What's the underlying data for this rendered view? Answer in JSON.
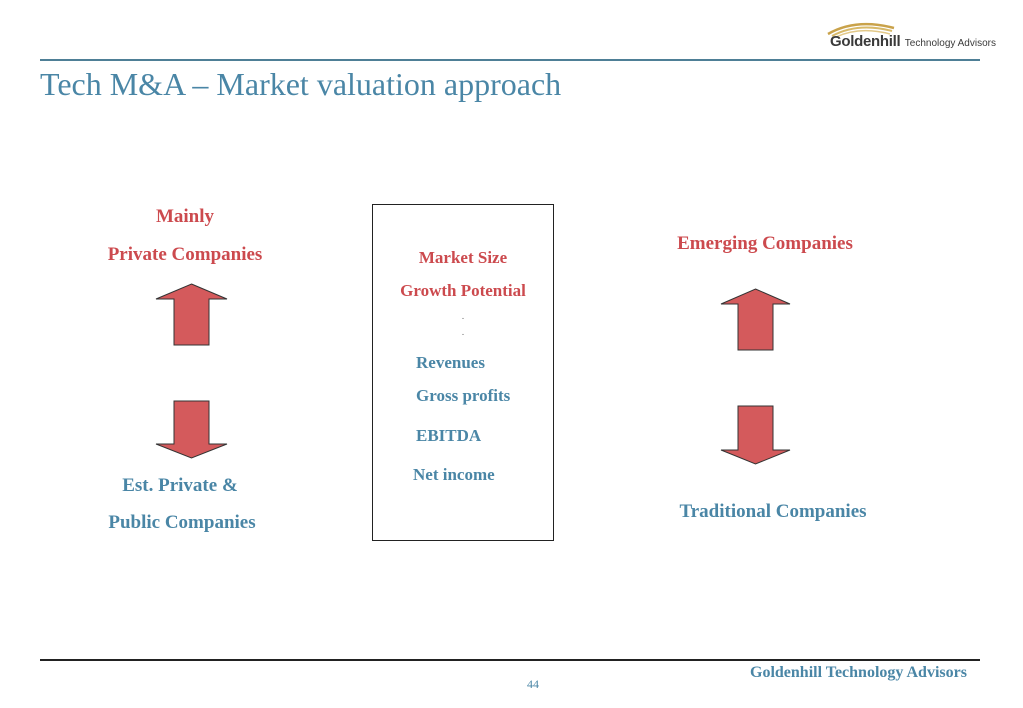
{
  "header": {
    "logo_main": "Goldenhill",
    "logo_sub": "Technology Advisors",
    "title": "Tech M&A – Market valuation approach"
  },
  "left": {
    "top_line1": "Mainly",
    "top_line2": "Private Companies",
    "bottom_line1": "Est. Private &",
    "bottom_line2": "Public Companies"
  },
  "center_box": {
    "items_red": [
      "Market Size",
      "Growth Potential"
    ],
    "dots": [
      ".",
      "."
    ],
    "items_blue": [
      "Revenues",
      "Gross profits",
      "EBITDA",
      "Net income"
    ]
  },
  "right": {
    "top_label": "Emerging Companies",
    "bottom_label": "Traditional Companies"
  },
  "footer": {
    "company": "Goldenhill Technology Advisors",
    "page_number": "44"
  },
  "colors": {
    "accent_blue": "#4a86a6",
    "accent_red": "#cc4a4e",
    "arrow_fill": "#d45a5c"
  }
}
